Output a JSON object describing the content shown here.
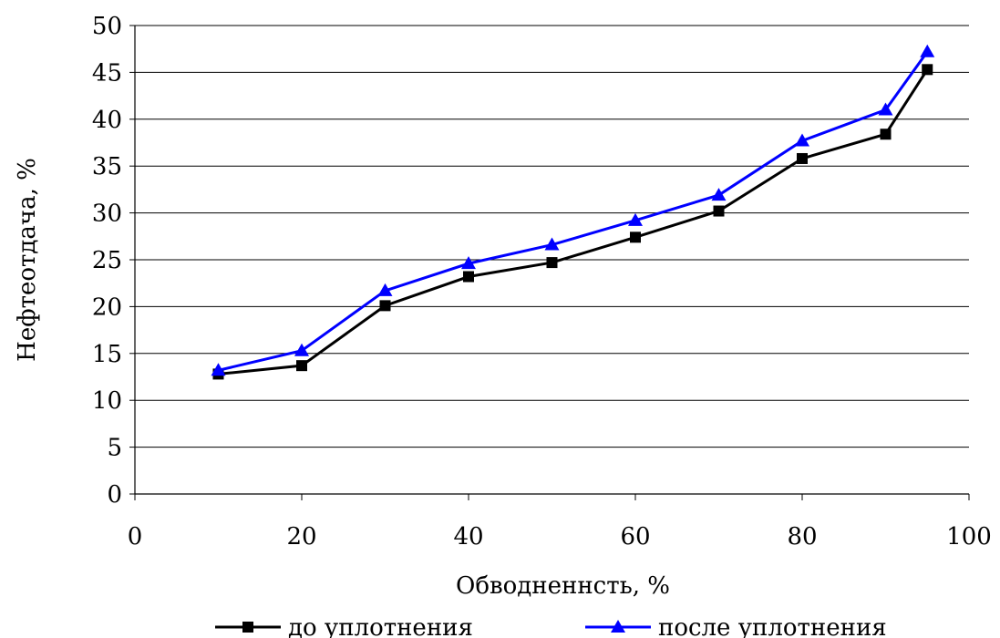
{
  "chart_data": {
    "type": "line",
    "xlabel": "Обводненнсть, %",
    "ylabel": "Нефтеотдача, %",
    "xlim": [
      0,
      100
    ],
    "ylim": [
      0,
      50
    ],
    "xticks": [
      0,
      20,
      40,
      60,
      80,
      100
    ],
    "yticks": [
      0,
      5,
      10,
      15,
      20,
      25,
      30,
      35,
      40,
      45,
      50
    ],
    "grid": "horizontal",
    "legend_position": "bottom",
    "series": [
      {
        "name": "до уплотнения",
        "color": "#000000",
        "marker": "square",
        "x": [
          10,
          20,
          30,
          40,
          50,
          60,
          70,
          80,
          90,
          95
        ],
        "y": [
          12.8,
          13.7,
          20.1,
          23.2,
          24.7,
          27.4,
          30.2,
          35.8,
          38.4,
          45.3
        ]
      },
      {
        "name": "после уплотнения",
        "color": "#0000ff",
        "marker": "triangle",
        "x": [
          10,
          20,
          30,
          40,
          50,
          60,
          70,
          80,
          90,
          95
        ],
        "y": [
          13.2,
          15.3,
          21.7,
          24.6,
          26.6,
          29.2,
          31.9,
          37.7,
          41.0,
          47.2
        ]
      }
    ]
  }
}
